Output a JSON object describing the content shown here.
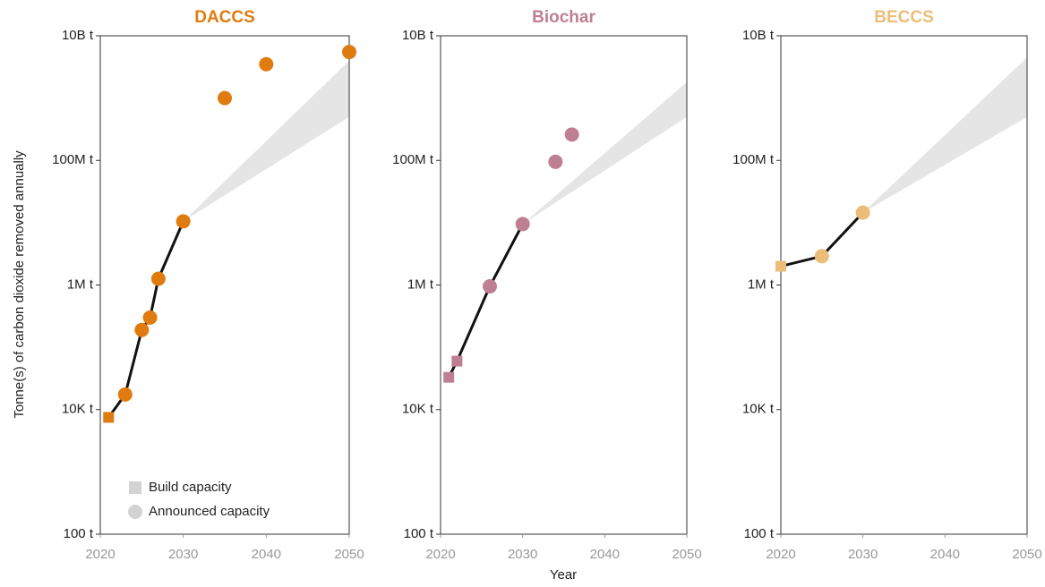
{
  "y_label": "Tonne(s) of carbon dioxide removed annually",
  "x_label": "Year",
  "chart_data": [
    {
      "type": "scatter",
      "title": "DACCS",
      "color": "#e07b10",
      "yscale": "log",
      "legend": true,
      "legend_color": "#d3d3d3",
      "xlim": [
        2020,
        2050
      ],
      "xticks": [
        2020,
        2030,
        2040,
        2050
      ],
      "ylim": [
        100,
        10000000000
      ],
      "yticks": [
        {
          "value": 100,
          "label": "100 t"
        },
        {
          "value": 10000,
          "label": "10K t"
        },
        {
          "value": 1000000,
          "label": "1M t"
        },
        {
          "value": 100000000,
          "label": "100M t"
        },
        {
          "value": 10000000000,
          "label": "10B t"
        }
      ],
      "series": [
        {
          "name": "Build capacity",
          "marker": "square",
          "x": [
            2021
          ],
          "values": [
            7500
          ]
        },
        {
          "name": "Announced capacity",
          "marker": "circle",
          "x": [
            2023,
            2025,
            2026,
            2027,
            2030,
            2035,
            2040,
            2050
          ],
          "values": [
            17500,
            190000,
            300000,
            1260000,
            10500000,
            1000000000,
            3500000000,
            5500000000
          ]
        }
      ],
      "projection": {
        "x": [
          2030,
          2050
        ],
        "low": [
          10500000,
          500000000
        ],
        "high": [
          10500000,
          4000000000
        ]
      }
    },
    {
      "type": "scatter",
      "title": "Biochar",
      "color": "#bf7f93",
      "yscale": "log",
      "xlim": [
        2020,
        2050
      ],
      "xticks": [
        2020,
        2030,
        2040,
        2050
      ],
      "ylim": [
        100,
        10000000000
      ],
      "yticks": [
        {
          "value": 100,
          "label": "100 t"
        },
        {
          "value": 10000,
          "label": "10K t"
        },
        {
          "value": 1000000,
          "label": "1M t"
        },
        {
          "value": 100000000,
          "label": "100M t"
        },
        {
          "value": 10000000000,
          "label": "10B t"
        }
      ],
      "series": [
        {
          "name": "Build capacity",
          "marker": "square",
          "x": [
            2021,
            2022
          ],
          "values": [
            33000,
            60000
          ]
        },
        {
          "name": "Announced capacity",
          "marker": "circle",
          "x": [
            2026,
            2030,
            2034,
            2036
          ],
          "values": [
            950000,
            9500000,
            95000000,
            260000000
          ]
        }
      ],
      "projection": {
        "x": [
          2030,
          2050
        ],
        "low": [
          9500000,
          500000000
        ],
        "high": [
          9500000,
          1800000000
        ]
      }
    },
    {
      "type": "scatter",
      "title": "BECCS",
      "color": "#ecbd79",
      "yscale": "log",
      "xlim": [
        2020,
        2050
      ],
      "xticks": [
        2020,
        2030,
        2040,
        2050
      ],
      "ylim": [
        100,
        10000000000
      ],
      "yticks": [
        {
          "value": 100,
          "label": "100 t"
        },
        {
          "value": 10000,
          "label": "10K t"
        },
        {
          "value": 1000000,
          "label": "1M t"
        },
        {
          "value": 100000000,
          "label": "100M t"
        },
        {
          "value": 10000000000,
          "label": "10B t"
        }
      ],
      "series": [
        {
          "name": "Build capacity",
          "marker": "square",
          "x": [
            2020
          ],
          "values": [
            2000000
          ]
        },
        {
          "name": "Announced capacity",
          "marker": "circle",
          "x": [
            2025,
            2030
          ],
          "values": [
            2900000,
            14500000
          ]
        }
      ],
      "projection": {
        "x": [
          2030,
          2050
        ],
        "low": [
          14500000,
          500000000
        ],
        "high": [
          14500000,
          4500000000
        ]
      }
    }
  ]
}
